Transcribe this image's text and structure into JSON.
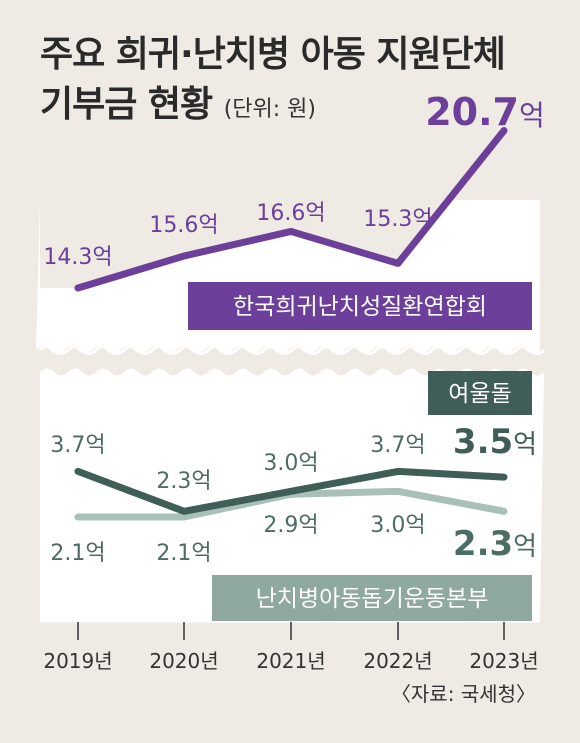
{
  "title_line1": "주요 희귀·난치병 아동 지원단체",
  "title_line2": "기부금 현황",
  "unit": "(단위: 원)",
  "source": "〈자료: 국세청〉",
  "colors": {
    "purple": "#6b3f9a",
    "dark_green": "#3f5e58",
    "light_green": "#a9c0b8",
    "label_purple": "#6b3f9a",
    "label_green": "#4e6c66",
    "background": "#efeae3"
  },
  "chart_data": {
    "type": "line",
    "categories": [
      "2019년",
      "2020년",
      "2021년",
      "2022년",
      "2023년"
    ],
    "value_suffix": "억",
    "series": [
      {
        "name": "한국희귀난치성질환연합회",
        "values": [
          14.3,
          15.6,
          16.6,
          15.3,
          20.7
        ],
        "labels": [
          "14.3",
          "15.6",
          "16.6",
          "15.3",
          "20.7"
        ],
        "color": "#6b3f9a"
      },
      {
        "name": "여울돌",
        "values": [
          3.7,
          2.3,
          3.0,
          3.7,
          3.5
        ],
        "labels": [
          "3.7",
          "2.3",
          "3.0",
          "3.7",
          "3.5"
        ],
        "color": "#3f5e58"
      },
      {
        "name": "난치병아동돕기운동본부",
        "values": [
          2.1,
          2.1,
          2.9,
          3.0,
          2.3
        ],
        "labels": [
          "2.1",
          "2.1",
          "2.9",
          "3.0",
          "2.3"
        ],
        "color": "#a9c0b8"
      }
    ],
    "axis_break": true,
    "grid": false
  }
}
